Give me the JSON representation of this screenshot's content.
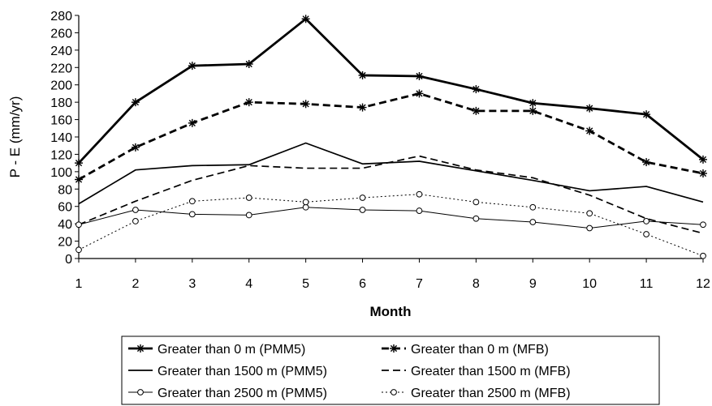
{
  "chart_data": {
    "type": "line",
    "xlabel": "Month",
    "ylabel": "P - E (mm/yr)",
    "categories": [
      "1",
      "2",
      "3",
      "4",
      "5",
      "6",
      "7",
      "8",
      "9",
      "10",
      "11",
      "12"
    ],
    "ylim": [
      0,
      280
    ],
    "yticks": [
      0,
      20,
      40,
      60,
      80,
      100,
      120,
      140,
      160,
      180,
      200,
      220,
      240,
      260,
      280
    ],
    "grid": false,
    "legend_placement": "bottom",
    "series": [
      {
        "name": "Greater than 0 m (PMM5)",
        "values": [
          110,
          180,
          222,
          224,
          276,
          211,
          210,
          195,
          179,
          173,
          166,
          114
        ],
        "style": "solid",
        "weight": "thick",
        "marker": "asterisk"
      },
      {
        "name": "Greater than 0 m (MFB)",
        "values": [
          91,
          128,
          156,
          180,
          178,
          174,
          190,
          170,
          170,
          147,
          111,
          98
        ],
        "style": "dashed",
        "weight": "thick",
        "marker": "asterisk"
      },
      {
        "name": "Greater than 1500 m (PMM5)",
        "values": [
          63,
          102,
          107,
          108,
          133,
          109,
          112,
          101,
          90,
          78,
          83,
          65
        ],
        "style": "solid",
        "weight": "medium",
        "marker": "none"
      },
      {
        "name": "Greater than 1500 m (MFB)",
        "values": [
          39,
          66,
          90,
          107,
          104,
          104,
          118,
          102,
          93,
          73,
          46,
          29
        ],
        "style": "dashed",
        "weight": "medium",
        "marker": "none"
      },
      {
        "name": "Greater than 2500 m (PMM5)",
        "values": [
          39,
          56,
          51,
          50,
          59,
          56,
          55,
          46,
          42,
          35,
          43,
          39
        ],
        "style": "solid",
        "weight": "thin",
        "marker": "circle"
      },
      {
        "name": "Greater than 2500 m (MFB)",
        "values": [
          10,
          43,
          66,
          70,
          65,
          70,
          74,
          65,
          59,
          52,
          28,
          3
        ],
        "style": "dotted",
        "weight": "thin",
        "marker": "circle"
      }
    ]
  }
}
